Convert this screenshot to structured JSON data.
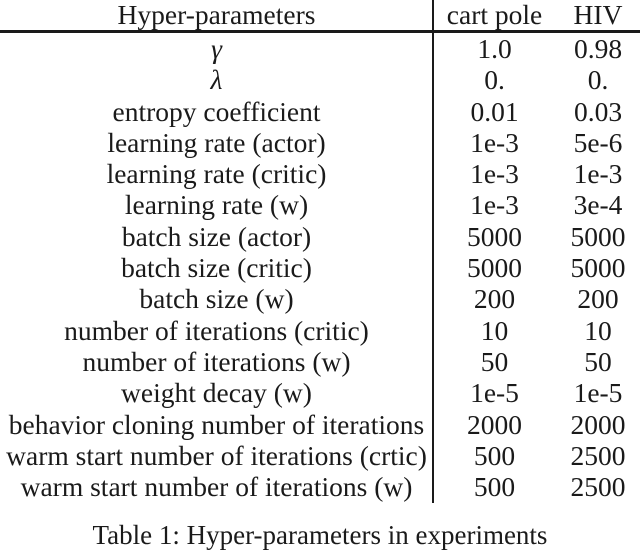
{
  "table": {
    "header": {
      "hyperparameters": "Hyper-parameters",
      "cart_pole": "cart pole",
      "hiv": "HIV"
    },
    "rows": [
      {
        "label": "γ",
        "italic": true,
        "cart_pole": "1.0",
        "hiv": "0.98"
      },
      {
        "label": "λ",
        "italic": true,
        "cart_pole": "0.",
        "hiv": "0."
      },
      {
        "label": "entropy coefficient",
        "italic": false,
        "cart_pole": "0.01",
        "hiv": "0.03"
      },
      {
        "label": "learning rate (actor)",
        "italic": false,
        "cart_pole": "1e-3",
        "hiv": "5e-6"
      },
      {
        "label": "learning rate (critic)",
        "italic": false,
        "cart_pole": "1e-3",
        "hiv": "1e-3"
      },
      {
        "label": "learning rate (w)",
        "italic": false,
        "cart_pole": "1e-3",
        "hiv": "3e-4"
      },
      {
        "label": "batch size (actor)",
        "italic": false,
        "cart_pole": "5000",
        "hiv": "5000"
      },
      {
        "label": "batch size (critic)",
        "italic": false,
        "cart_pole": "5000",
        "hiv": "5000"
      },
      {
        "label": "batch size (w)",
        "italic": false,
        "cart_pole": "200",
        "hiv": "200"
      },
      {
        "label": "number of iterations (critic)",
        "italic": false,
        "cart_pole": "10",
        "hiv": "10"
      },
      {
        "label": "number of iterations (w)",
        "italic": false,
        "cart_pole": "50",
        "hiv": "50"
      },
      {
        "label": "weight decay (w)",
        "italic": false,
        "cart_pole": "1e-5",
        "hiv": "1e-5"
      },
      {
        "label": "behavior cloning number of iterations",
        "italic": false,
        "cart_pole": "2000",
        "hiv": "2000"
      },
      {
        "label": "warm start number of iterations (crtic)",
        "italic": false,
        "cart_pole": "500",
        "hiv": "2500"
      },
      {
        "label": "warm start number of iterations (w)",
        "italic": false,
        "cart_pole": "500",
        "hiv": "2500"
      }
    ]
  },
  "caption": {
    "text": "Table 1: Hyper-parameters in experiments"
  },
  "colors": {
    "text": "#1a1a1a",
    "background": "#ffffff",
    "rule": "#1a1a1a"
  }
}
